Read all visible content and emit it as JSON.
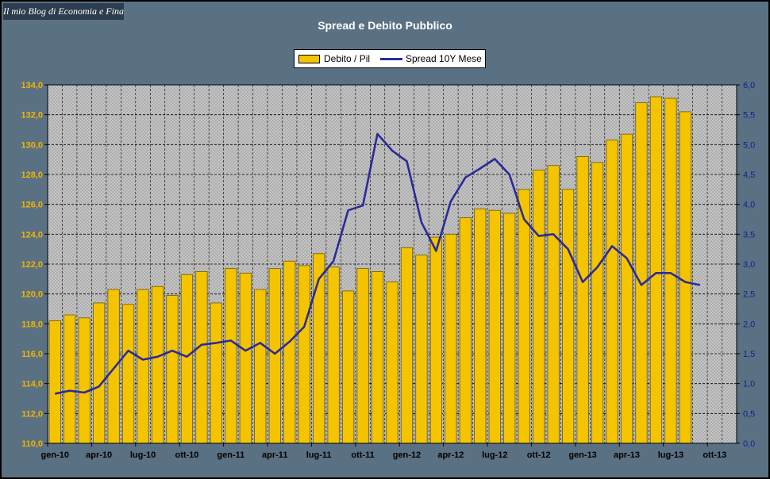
{
  "header": {
    "blog_name": "Il mio Blog di Economia e Finanza"
  },
  "colors": {
    "background": "#5a7183",
    "bar_fill": "#f5c400",
    "bar_stroke": "#6b5a00",
    "line": "#2b2b9a",
    "left_axis_text": "#f0b400",
    "right_axis_text": "#1b1b8c"
  },
  "chart_data": {
    "type": "bar",
    "title": "Spread e Debito Pubblico",
    "legend_position": "top-center",
    "grid": true,
    "x_tick_labels": [
      "gen-10",
      "apr-10",
      "lug-10",
      "ott-10",
      "gen-11",
      "apr-11",
      "lug-11",
      "ott-11",
      "gen-12",
      "apr-12",
      "lug-12",
      "ott-12",
      "gen-13",
      "apr-13",
      "lug-13",
      "ott-13"
    ],
    "months": [
      "gen-10",
      "feb-10",
      "mar-10",
      "apr-10",
      "mag-10",
      "giu-10",
      "lug-10",
      "ago-10",
      "set-10",
      "ott-10",
      "nov-10",
      "dic-10",
      "gen-11",
      "feb-11",
      "mar-11",
      "apr-11",
      "mag-11",
      "giu-11",
      "lug-11",
      "ago-11",
      "set-11",
      "ott-11",
      "nov-11",
      "dic-11",
      "gen-12",
      "feb-12",
      "mar-12",
      "apr-12",
      "mag-12",
      "giu-12",
      "lug-12",
      "ago-12",
      "set-12",
      "ott-12",
      "nov-12",
      "dic-12",
      "gen-13",
      "feb-13",
      "mar-13",
      "apr-13",
      "mag-13",
      "giu-13",
      "lug-13",
      "ago-13",
      "set-13",
      "ott-13",
      "nov-13"
    ],
    "y_left": {
      "ylim": [
        110,
        134
      ],
      "ticks": [
        "110,0",
        "112,0",
        "114,0",
        "116,0",
        "118,0",
        "120,0",
        "122,0",
        "124,0",
        "126,0",
        "128,0",
        "130,0",
        "132,0",
        "134,0"
      ]
    },
    "y_right": {
      "ylim": [
        0,
        6
      ],
      "ticks": [
        "0,0",
        "0,5",
        "1,0",
        "1,5",
        "2,0",
        "2,5",
        "3,0",
        "3,5",
        "4,0",
        "4,5",
        "5,0",
        "5,5",
        "6,0"
      ]
    },
    "series": [
      {
        "name": "Debito / Pil",
        "type": "bar",
        "axis": "left",
        "values": [
          118.2,
          118.6,
          118.4,
          119.4,
          120.3,
          119.3,
          120.3,
          120.5,
          119.9,
          121.3,
          121.5,
          119.4,
          121.7,
          121.4,
          120.3,
          121.7,
          122.2,
          121.9,
          122.7,
          121.8,
          120.2,
          121.7,
          121.5,
          120.8,
          123.1,
          122.6,
          123.8,
          124.0,
          125.1,
          125.7,
          125.6,
          125.4,
          127.0,
          128.3,
          128.6,
          127.0,
          129.2,
          128.8,
          130.3,
          130.7,
          132.8,
          133.2,
          133.1,
          132.2,
          null,
          null,
          null
        ]
      },
      {
        "name": "Spread 10Y Mese",
        "type": "line",
        "axis": "right",
        "values": [
          0.83,
          0.88,
          0.85,
          0.95,
          1.25,
          1.55,
          1.4,
          1.45,
          1.55,
          1.45,
          1.65,
          1.68,
          1.72,
          1.55,
          1.68,
          1.5,
          1.7,
          1.95,
          2.75,
          3.05,
          3.9,
          3.98,
          5.18,
          4.9,
          4.72,
          3.7,
          3.22,
          4.05,
          4.45,
          4.6,
          4.76,
          4.5,
          3.75,
          3.47,
          3.5,
          3.25,
          2.7,
          2.95,
          3.3,
          3.1,
          2.65,
          2.85,
          2.85,
          2.7,
          2.65,
          null,
          null
        ]
      }
    ]
  }
}
